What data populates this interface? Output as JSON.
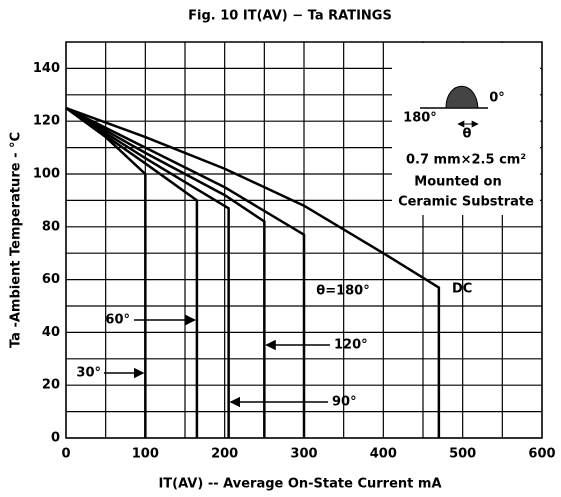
{
  "chart_data": {
    "type": "line",
    "title": "Fig. 10 IT(AV) − Ta RATINGS",
    "xlabel": "IT(AV) -- Average On-State Current mA",
    "ylabel": "Ta -Ambient Temperature - °C",
    "xlim": [
      0,
      600
    ],
    "ylim": [
      0,
      150
    ],
    "xticks": [
      0,
      100,
      200,
      300,
      400,
      500,
      600
    ],
    "yticks": [
      0,
      20,
      40,
      60,
      80,
      100,
      120,
      140
    ],
    "xminor": [
      50,
      150,
      250,
      350,
      450,
      550
    ],
    "yminor": [
      10,
      30,
      50,
      70,
      90,
      110,
      130
    ],
    "grid": true,
    "color": "#000000",
    "series": [
      {
        "name": "30°",
        "x": [
          0,
          50,
          100,
          100
        ],
        "values": [
          125,
          114,
          100,
          0
        ]
      },
      {
        "name": "60°",
        "x": [
          0,
          100,
          165,
          165
        ],
        "values": [
          125,
          104,
          90,
          0
        ]
      },
      {
        "name": "90°",
        "x": [
          0,
          100,
          205,
          205
        ],
        "values": [
          125,
          106,
          87,
          0
        ]
      },
      {
        "name": "120°",
        "x": [
          0,
          100,
          200,
          250,
          250
        ],
        "values": [
          125,
          108,
          92,
          82,
          0
        ]
      },
      {
        "name": "θ=180°",
        "x": [
          0,
          100,
          200,
          300,
          300
        ],
        "values": [
          125,
          110,
          95,
          77,
          0
        ]
      },
      {
        "name": "DC",
        "x": [
          0,
          100,
          200,
          300,
          400,
          470,
          470
        ],
        "values": [
          125,
          114,
          102,
          88,
          70,
          57,
          0
        ]
      }
    ],
    "inset": {
      "left": "180°",
      "right": "0°",
      "angle": "θ",
      "line1": "0.7 mm×2.5 cm²",
      "line2": "Mounted on",
      "line3": "Ceramic Substrate"
    }
  }
}
